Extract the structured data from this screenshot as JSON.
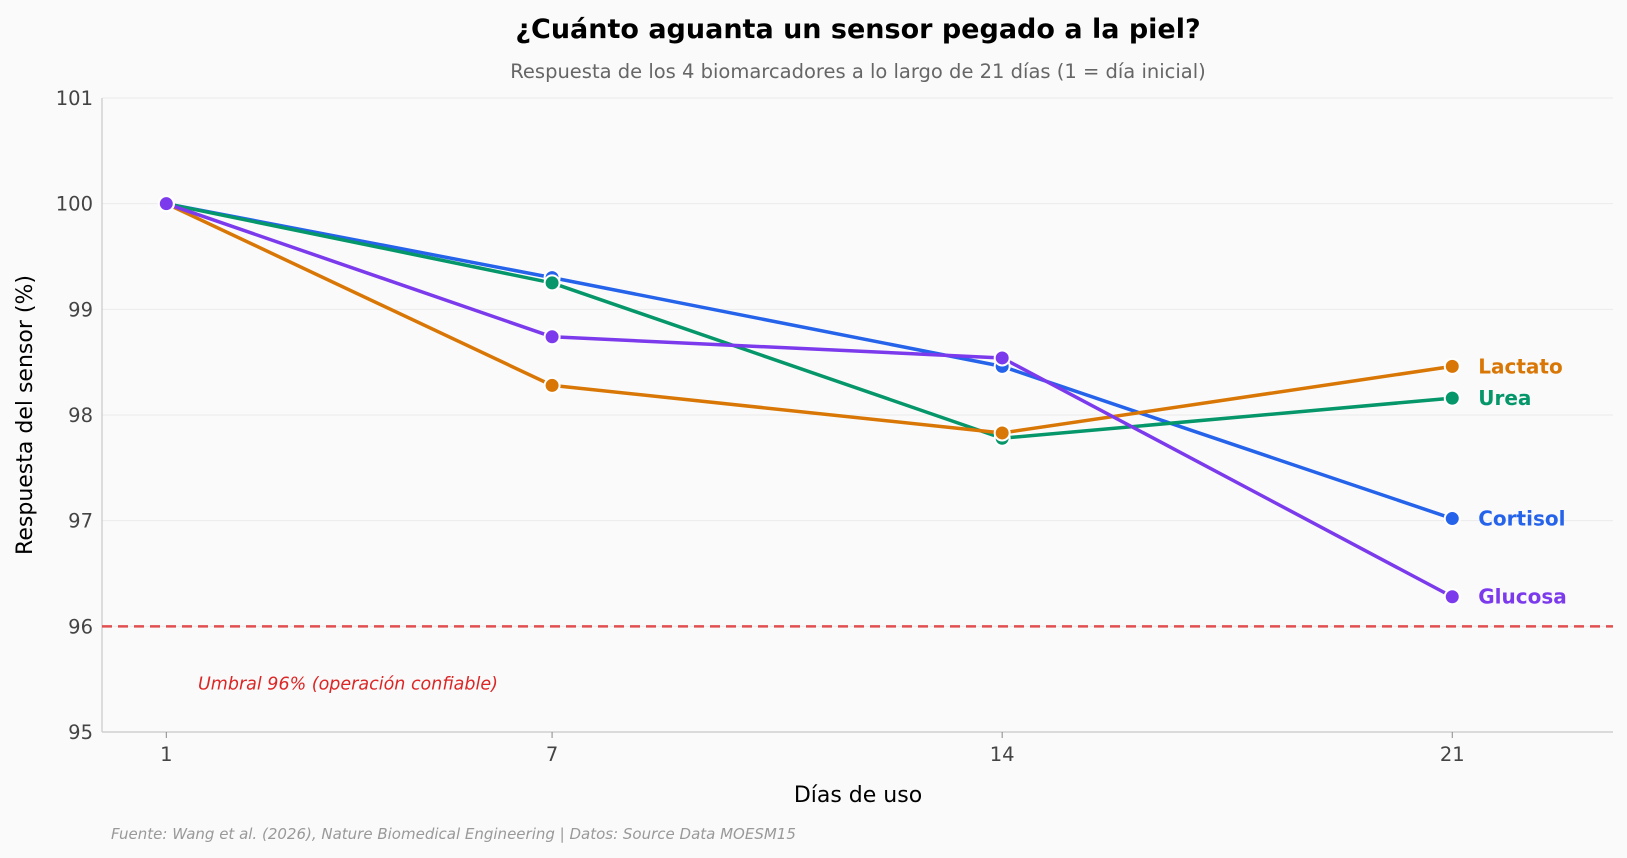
{
  "chart_data": {
    "type": "line",
    "title": "¿Cuánto aguanta un sensor pegado a la piel?",
    "subtitle": "Respuesta de los 4 biomarcadores a lo largo de 21 días (1 = día inicial)",
    "xlabel": "Días de uso",
    "ylabel": "Respuesta del sensor (%)",
    "x": [
      1,
      7,
      14,
      21
    ],
    "x_ticks": [
      "1",
      "7",
      "14",
      "21"
    ],
    "xlim": [
      0,
      23.5
    ],
    "ylim": [
      95,
      101
    ],
    "y_ticks": [
      95,
      96,
      97,
      98,
      99,
      100,
      101
    ],
    "grid": "horizontal",
    "series": [
      {
        "name": "Cortisol",
        "color": "#2563eb",
        "values": [
          100,
          99.3,
          98.46,
          97.02
        ]
      },
      {
        "name": "Urea",
        "color": "#059669",
        "values": [
          100,
          99.25,
          97.78,
          98.16
        ]
      },
      {
        "name": "Lactato",
        "color": "#d97706",
        "values": [
          100,
          98.28,
          97.83,
          98.46
        ]
      },
      {
        "name": "Glucosa",
        "color": "#7c3aed",
        "values": [
          100,
          98.74,
          98.54,
          96.28
        ]
      }
    ],
    "threshold": {
      "value": 96,
      "label": "Umbral 96% (operación confiable)",
      "color": "#dc2626"
    },
    "source": "Fuente: Wang et al. (2026), Nature Biomedical Engineering | Datos: Source Data MOESM15"
  }
}
